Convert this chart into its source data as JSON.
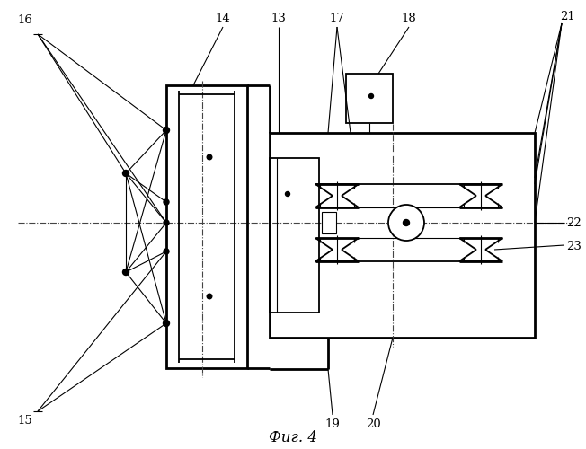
{
  "bg_color": "#ffffff",
  "line_color": "#000000",
  "fig_width": 6.52,
  "fig_height": 5.0,
  "title": "Фиг. 4"
}
